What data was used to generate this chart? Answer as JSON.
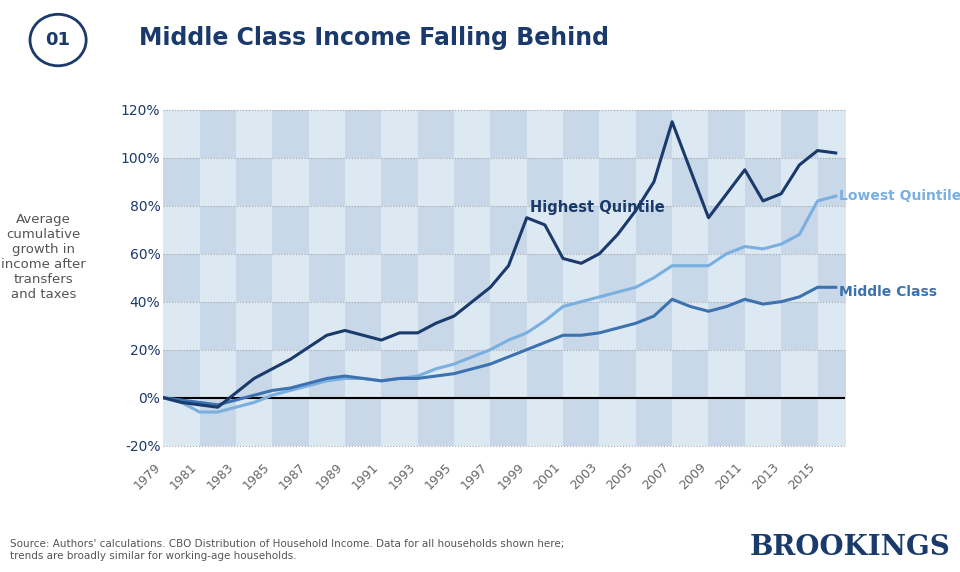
{
  "title": "Middle Class Income Falling Behind",
  "title_number": "01",
  "ylabel": "Average\ncumulative\ngrowth in\nincome after\ntransfers\nand taxes",
  "source_text": "Source: Authors' calculations. CBO Distribution of Household Income. Data for all households shown here;\ntrends are broadly similar for working-age households.",
  "brookings_text": "BROOKINGS",
  "years": [
    1979,
    1980,
    1981,
    1982,
    1983,
    1984,
    1985,
    1986,
    1987,
    1988,
    1989,
    1990,
    1991,
    1992,
    1993,
    1994,
    1995,
    1996,
    1997,
    1998,
    1999,
    2000,
    2001,
    2002,
    2003,
    2004,
    2005,
    2006,
    2007,
    2008,
    2009,
    2010,
    2011,
    2012,
    2013,
    2014,
    2015,
    2016
  ],
  "highest_quintile": [
    0,
    -2,
    -3,
    -4,
    2,
    8,
    12,
    16,
    21,
    26,
    28,
    26,
    24,
    27,
    27,
    31,
    34,
    40,
    46,
    55,
    75,
    72,
    58,
    56,
    60,
    68,
    78,
    90,
    115,
    95,
    75,
    85,
    95,
    82,
    85,
    97,
    103,
    102
  ],
  "lowest_quintile": [
    0,
    -2,
    -6,
    -6,
    -4,
    -2,
    1,
    3,
    5,
    7,
    8,
    8,
    7,
    8,
    9,
    12,
    14,
    17,
    20,
    24,
    27,
    32,
    38,
    40,
    42,
    44,
    46,
    50,
    55,
    55,
    55,
    60,
    63,
    62,
    64,
    68,
    82,
    84
  ],
  "middle_class": [
    0,
    -1,
    -2,
    -3,
    -1,
    1,
    3,
    4,
    6,
    8,
    9,
    8,
    7,
    8,
    8,
    9,
    10,
    12,
    14,
    17,
    20,
    23,
    26,
    26,
    27,
    29,
    31,
    34,
    41,
    38,
    36,
    38,
    41,
    39,
    40,
    42,
    46,
    46
  ],
  "color_highest": "#1a3a6b",
  "color_lowest": "#7aafe0",
  "color_middle": "#3d72b0",
  "color_title": "#1a3a6b",
  "color_zero_line": "#000000",
  "ylim": [
    -25,
    130
  ],
  "yticks": [
    -20,
    0,
    20,
    40,
    60,
    80,
    100,
    120
  ],
  "xtick_years": [
    1979,
    1981,
    1983,
    1985,
    1987,
    1989,
    1991,
    1993,
    1995,
    1997,
    1999,
    2001,
    2003,
    2005,
    2007,
    2009,
    2011,
    2013,
    2015
  ],
  "checker_color1": "#dce8f2",
  "checker_color2": "#c8d8e8"
}
